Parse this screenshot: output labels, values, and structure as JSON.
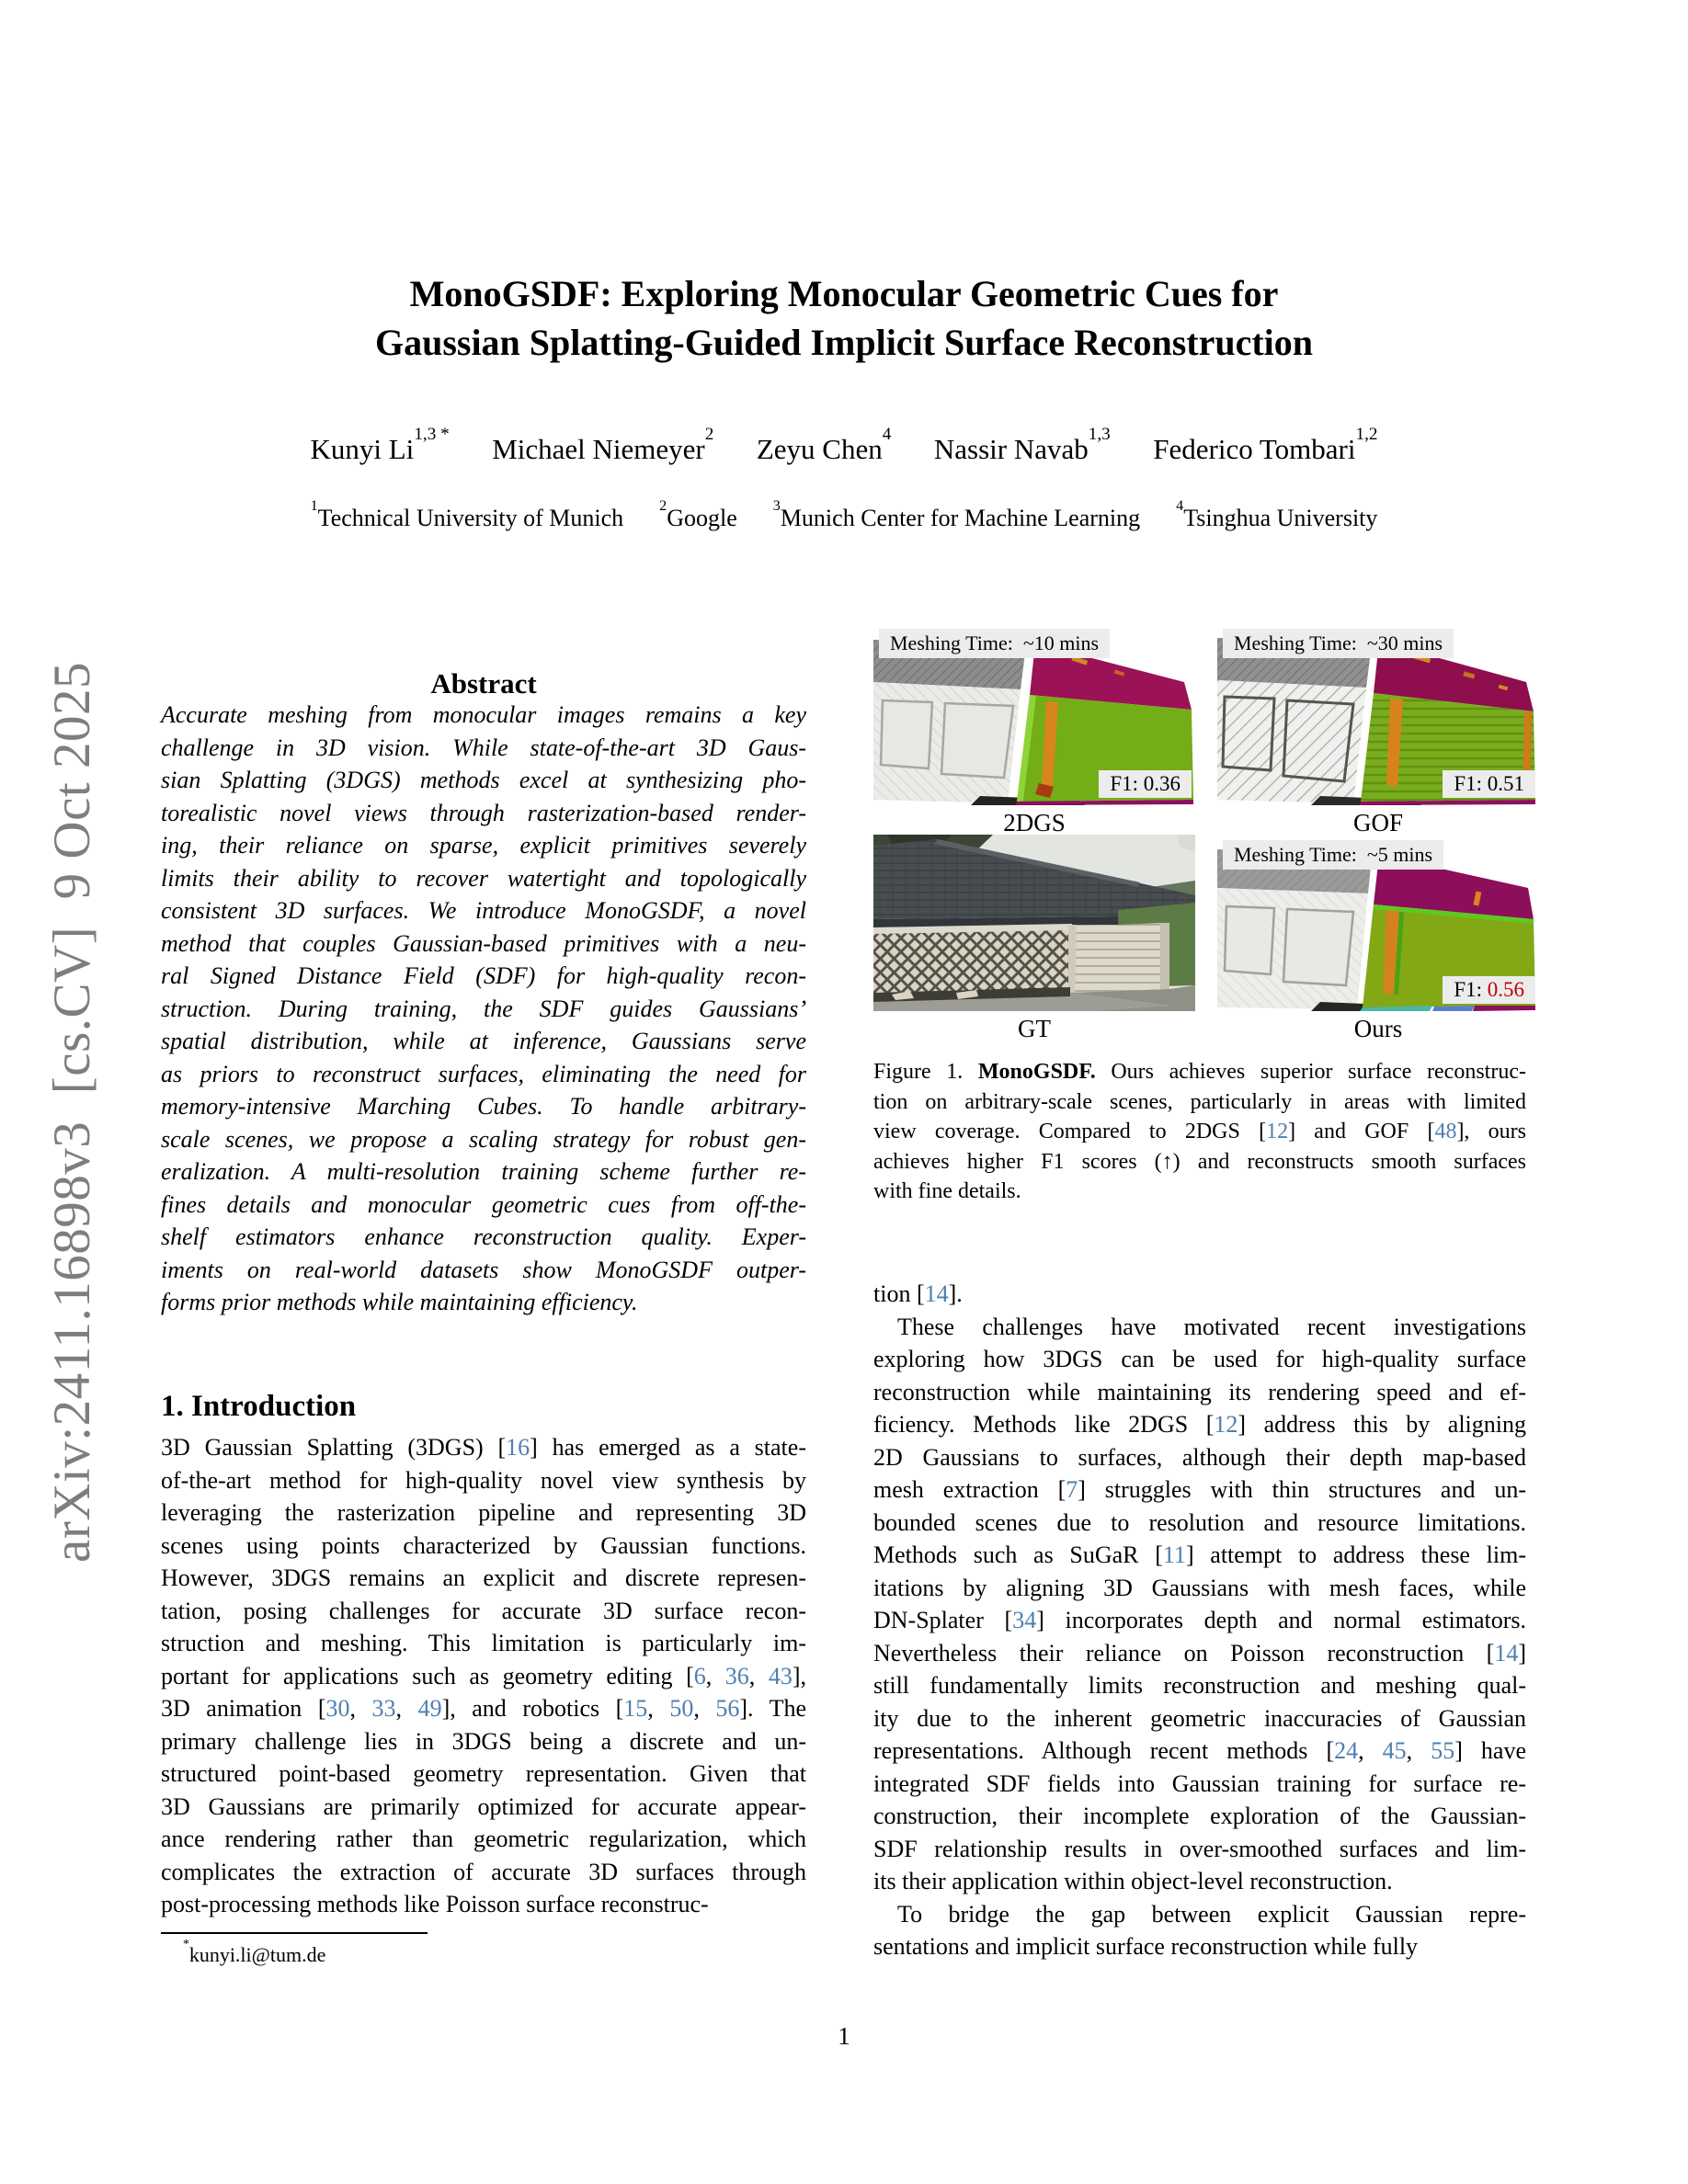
{
  "arxiv_banner": "arXiv:2411.16898v3  [cs.CV]  9 Oct 2025",
  "title": {
    "line1": "MonoGSDF: Exploring Monocular Geometric Cues for",
    "line2": "Gaussian Splatting-Guided Implicit Surface Reconstruction"
  },
  "authors_line": "Kunyi Li^{1,3 *}  Michael Niemeyer^{2}  Zeyu Chen^{4}  Nassir Navab^{1,3}  Federico Tombari^{1,2}",
  "affiliations_line": "^{1}Technical University of Munich  ^{2}Google  ^{3}Munich Center for Machine Learning  ^{4}Tsinghua University",
  "abstract": {
    "heading": "Abstract",
    "paragraphs": [
      [
        "Accurate meshing from monocular images remains a key",
        "challenge in 3D vision.  While state-of-the-art 3D Gaus-",
        "sian Splatting (3DGS) methods excel at synthesizing pho-",
        "torealistic novel views through rasterization-based render-",
        "ing, their reliance on sparse, explicit primitives severely",
        "limits their ability to recover watertight and topologically",
        "consistent 3D surfaces.  We introduce MonoGSDF, a novel",
        "method that couples Gaussian-based primitives with a neu-",
        "ral Signed Distance Field (SDF) for high-quality recon-",
        "struction.  During training, the SDF guides Gaussians’",
        "spatial distribution, while at inference, Gaussians serve",
        "as priors to reconstruct surfaces, eliminating the need for",
        "memory-intensive Marching Cubes.  To handle arbitrary-",
        "scale scenes, we propose a scaling strategy for robust gen-",
        "eralization. A multi-resolution training scheme further re-",
        "fines details and monocular geometric cues from off-the-",
        "shelf estimators enhance reconstruction quality.  Exper-",
        "iments on real-world datasets show MonoGSDF outper-",
        "forms prior methods while maintaining efficiency."
      ]
    ]
  },
  "introduction": {
    "heading": "1. Introduction",
    "paragraphs": [
      [
        "3D Gaussian Splatting (3DGS) [{16}] has emerged as a state-",
        "of-the-art method for high-quality novel view synthesis by",
        "leveraging the rasterization pipeline and representing 3D",
        "scenes using points characterized by Gaussian functions.",
        "However, 3DGS remains an explicit and discrete represen-",
        "tation, posing challenges for accurate 3D surface recon-",
        "struction and meshing.  This limitation is particularly im-",
        "portant for applications such as geometry editing [{6}, {36}, {43}],",
        "3D animation [{30}, {33}, {49}], and robotics [{15}, {50}, {56}].  The",
        "primary challenge lies in 3DGS being a discrete and un-",
        "structured point-based geometry representation. Given that",
        "3D Gaussians are primarily optimized for accurate appear-",
        "ance rendering rather than geometric regularization, which",
        "complicates the extraction of accurate 3D surfaces through",
        "post-processing methods like Poisson surface reconstruc-"
      ]
    ]
  },
  "footnote": {
    "email_line": "^{*}kunyi.li@tum.de"
  },
  "figure1": {
    "panels": [
      {
        "id": "2dgs",
        "meshing_time": "Meshing Time:  ~10 mins",
        "f1_prefix": "F1: ",
        "f1_value": "0.36",
        "f1_value_color": "#000000",
        "caption": "2DGS"
      },
      {
        "id": "gof",
        "meshing_time": "Meshing Time:  ~30 mins",
        "f1_prefix": "F1: ",
        "f1_value": "0.51",
        "f1_value_color": "#000000",
        "caption": "GOF"
      },
      {
        "id": "gt",
        "caption": "GT"
      },
      {
        "id": "ours",
        "meshing_time": "Meshing Time:  ~5 mins",
        "f1_prefix": "F1: ",
        "f1_value": "0.56",
        "f1_value_color": "#c00000",
        "caption": "Ours"
      }
    ],
    "caption_paragraphs": [
      [
        "Figure 1. **MonoGSDF.** Ours achieves superior surface reconstruc-",
        "tion on arbitrary-scale scenes, particularly in areas with limited",
        "view coverage.  Compared to 2DGS [{12}] and GOF [{48}], ours",
        "achieves higher F1 scores (↑) and reconstructs smooth surfaces",
        "with fine details."
      ]
    ]
  },
  "right_column": {
    "paragraphs": [
      [
        "tion [{14}]."
      ],
      [
        " These challenges have motivated recent investigations",
        "exploring how 3DGS can be used for high-quality surface",
        "reconstruction while maintaining its rendering speed and ef-",
        "ficiency.  Methods like 2DGS [{12}] address this by aligning",
        "2D Gaussians to surfaces, although their depth map-based",
        "mesh extraction [{7}] struggles with thin structures and un-",
        "bounded scenes due to resolution and resource limitations.",
        "Methods such as SuGaR [{11}] attempt to address these lim-",
        "itations by aligning 3D Gaussians with mesh faces, while",
        "DN-Splater [{34}] incorporates depth and normal estimators.",
        "Nevertheless their reliance on Poisson reconstruction [{14}]",
        "still fundamentally limits reconstruction and meshing qual-",
        "ity due to the inherent geometric inaccuracies of Gaussian",
        "representations.  Although recent methods [{24}, {45}, {55}] have",
        "integrated SDF fields into Gaussian training for surface re-",
        "construction, their incomplete exploration of the Gaussian-",
        "SDF relationship results in over-smoothed surfaces and lim-",
        "its their application within object-level reconstruction."
      ],
      [
        " To bridge the gap between explicit Gaussian repre-",
        "sentations and implicit surface reconstruction while fully"
      ]
    ]
  },
  "page_number": "1",
  "colors": {
    "citation_link": "#4e7fb0",
    "f1_highlight_red": "#c00000",
    "arxiv_gray": "#7e7e7e",
    "mesh_error_magenta": "#9b1256",
    "mesh_good_green": "#74ae19",
    "mesh_orange": "#d8851c"
  }
}
